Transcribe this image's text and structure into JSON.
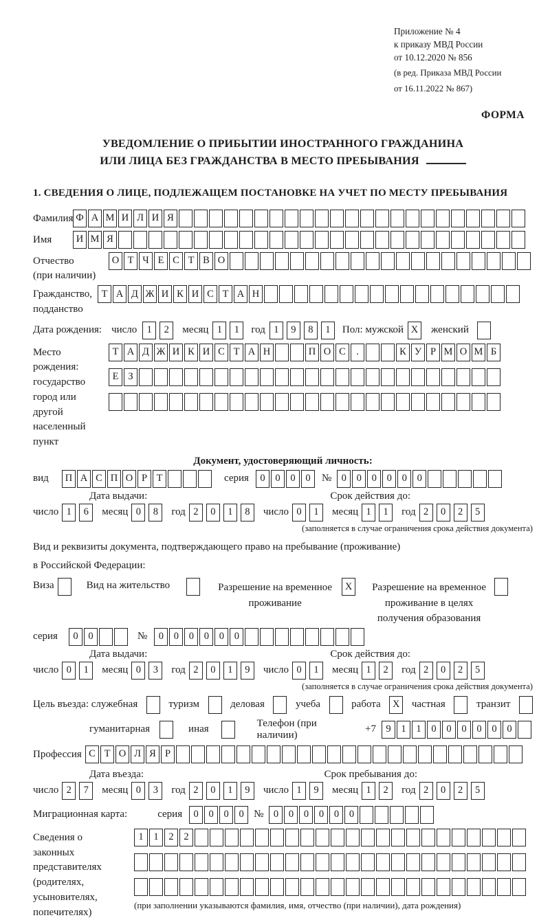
{
  "header": {
    "annex_line1": "Приложение № 4",
    "annex_line2": "к приказу МВД России",
    "annex_line3": "от 10.12.2020 № 856",
    "edition_line1": "(в ред. Приказа МВД России",
    "edition_line2": "от 16.11.2022 № 867)",
    "forma": "ФОРМА"
  },
  "title": {
    "line1": "УВЕДОМЛЕНИЕ О ПРИБЫТИИ ИНОСТРАННОГО ГРАЖДАНИНА",
    "line2": "ИЛИ ЛИЦА БЕЗ ГРАЖДАНСТВА В МЕСТО ПРЕБЫВАНИЯ"
  },
  "section1_heading": "1. СВЕДЕНИЯ О ЛИЦЕ, ПОДЛЕЖАЩЕМ ПОСТАНОВКЕ НА УЧЕТ ПО МЕСТУ ПРЕБЫВАНИЯ",
  "labels": {
    "surname": "Фамилия",
    "given_name": "Имя",
    "patronymic_l1": "Отчество",
    "patronymic_l2": "(при наличии)",
    "citizenship_l1": "Гражданство,",
    "citizenship_l2": "подданство",
    "birth_date": "Дата рождения:",
    "day": "число",
    "month": "месяц",
    "year": "год",
    "sex_male": "Пол: мужской",
    "sex_female": "женский",
    "birthplace_l1": "Место рождения:",
    "birthplace_l2": "государство",
    "birthplace_l3": "город или другой",
    "birthplace_l4": "населенный пункт",
    "identity_doc_heading": "Документ, удостоверяющий личность:",
    "doc_type": "вид",
    "series": "серия",
    "number": "№",
    "issue_date": "Дата выдачи:",
    "valid_until": "Срок действия до:",
    "validity_note": "(заполняется в случае ограничения срока действия документа)",
    "residence_doc_l1": "Вид и реквизиты документа, подтверждающего право на пребывание (проживание)",
    "residence_doc_l2": "в Российской Федерации:",
    "visa": "Виза",
    "residence_permit": "Вид на жительство",
    "temp_permit_l1": "Разрешение на временное",
    "temp_permit_l2": "проживание",
    "temp_permit_edu_l1": "Разрешение на временное",
    "temp_permit_edu_l2": "проживание в целях",
    "temp_permit_edu_l3": "получения образования",
    "purpose": "Цель въезда: служебная",
    "tourism": "туризм",
    "business": "деловая",
    "study": "учеба",
    "work": "работа",
    "private": "частная",
    "transit": "транзит",
    "humanitarian": "гуманитарная",
    "other": "иная",
    "phone": "Телефон (при наличии)",
    "phone_prefix": "+7",
    "profession": "Профессия",
    "entry_date": "Дата въезда:",
    "stay_until": "Срок пребывания до:",
    "migration_card": "Миграционная карта:",
    "representatives_l1": "Сведения о",
    "representatives_l2": "законных",
    "representatives_l3": "представителях",
    "representatives_l4": "(родителях,",
    "representatives_l5": "усыновителях,",
    "representatives_l6": "попечителях)",
    "representatives_note": "(при заполнении указываются фамилия, имя, отчество (при наличии), дата рождения)"
  },
  "boxes": {
    "surname": {
      "value": "ФАМИЛИЯ",
      "total": 30
    },
    "given_name": {
      "value": "ИМЯ",
      "total": 30
    },
    "patronymic": {
      "value": "ОТЧЕСТВО",
      "total": 28
    },
    "citizenship": {
      "value": "ТАДЖИКИСТАН",
      "total": 28
    },
    "birth_day": {
      "value": "12",
      "total": 2
    },
    "birth_month": {
      "value": "11",
      "total": 2
    },
    "birth_year": {
      "value": "1981",
      "total": 4
    },
    "sex_male_checkbox": {
      "value": "X",
      "total": 1
    },
    "sex_female_checkbox": {
      "value": "",
      "total": 1
    },
    "birthplace_row1": {
      "value": "ТАДЖИКИСТАН  ПОС.  КУРМОМБ",
      "total": 26
    },
    "birthplace_row2": {
      "value": "ЕЗ",
      "total": 26
    },
    "birthplace_row3": {
      "value": "",
      "total": 26
    },
    "id_doc_type": {
      "value": "ПАСПОРТ",
      "total": 10
    },
    "id_doc_series": {
      "value": "0000",
      "total": 4
    },
    "id_doc_number": {
      "value": "000000",
      "total": 11
    },
    "id_issue_day": {
      "value": "16",
      "total": 2
    },
    "id_issue_month": {
      "value": "08",
      "total": 2
    },
    "id_issue_year": {
      "value": "2018",
      "total": 4
    },
    "id_expiry_day": {
      "value": "01",
      "total": 2
    },
    "id_expiry_month": {
      "value": "11",
      "total": 2
    },
    "id_expiry_year": {
      "value": "2025",
      "total": 4
    },
    "visa_checkbox": {
      "value": "",
      "total": 1
    },
    "residence_permit_checkbox": {
      "value": "",
      "total": 1
    },
    "temp_permit_checkbox": {
      "value": "X",
      "total": 1
    },
    "temp_permit_edu_checkbox": {
      "value": "",
      "total": 1
    },
    "permit_series": {
      "value": "00",
      "total": 4
    },
    "permit_number": {
      "value": "000000",
      "total": 14
    },
    "permit_issue_day": {
      "value": "01",
      "total": 2
    },
    "permit_issue_month": {
      "value": "03",
      "total": 2
    },
    "permit_issue_year": {
      "value": "2019",
      "total": 4
    },
    "permit_expiry_day": {
      "value": "01",
      "total": 2
    },
    "permit_expiry_month": {
      "value": "12",
      "total": 2
    },
    "permit_expiry_year": {
      "value": "2025",
      "total": 4
    },
    "purpose_official_checkbox": {
      "value": "",
      "total": 1
    },
    "purpose_tourism_checkbox": {
      "value": "",
      "total": 1
    },
    "purpose_business_checkbox": {
      "value": "",
      "total": 1
    },
    "purpose_study_checkbox": {
      "value": "",
      "total": 1
    },
    "purpose_work_checkbox": {
      "value": "X",
      "total": 1
    },
    "purpose_private_checkbox": {
      "value": "",
      "total": 1
    },
    "purpose_transit_checkbox": {
      "value": "",
      "total": 1
    },
    "purpose_humanitarian_checkbox": {
      "value": "",
      "total": 1
    },
    "purpose_other_checkbox": {
      "value": "",
      "total": 1
    },
    "phone_number": {
      "value": "911000000",
      "total": 10
    },
    "profession": {
      "value": "СТОЛЯР",
      "total": 29
    },
    "entry_day": {
      "value": "27",
      "total": 2
    },
    "entry_month": {
      "value": "03",
      "total": 2
    },
    "entry_year": {
      "value": "2019",
      "total": 4
    },
    "stay_day": {
      "value": "19",
      "total": 2
    },
    "stay_month": {
      "value": "12",
      "total": 2
    },
    "stay_year": {
      "value": "2025",
      "total": 4
    },
    "mig_card_series": {
      "value": "0000",
      "total": 4
    },
    "mig_card_number": {
      "value": "000000",
      "total": 11
    },
    "representatives_row1": {
      "value": "1122",
      "total": 26
    },
    "representatives_row2": {
      "value": "",
      "total": 26
    },
    "representatives_row3": {
      "value": "",
      "total": 26
    }
  }
}
